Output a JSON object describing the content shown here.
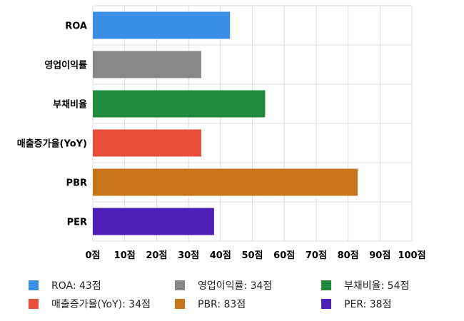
{
  "chart_data": {
    "type": "bar",
    "orientation": "horizontal",
    "categories": [
      "ROA",
      "영업이익률",
      "부채비율",
      "매출증가율(YoY)",
      "PBR",
      "PER"
    ],
    "values": [
      43,
      34,
      54,
      34,
      83,
      38
    ],
    "colors": [
      "#3a8ee6",
      "#888888",
      "#1f8a3a",
      "#e84e3a",
      "#c97418",
      "#4e1fb8"
    ],
    "xlim": [
      0,
      100
    ],
    "xticks": [
      0,
      10,
      20,
      30,
      40,
      50,
      60,
      70,
      80,
      90,
      100
    ],
    "xtick_suffix": "점",
    "grid": true,
    "legend_position": "bottom"
  },
  "legend": [
    {
      "label": "ROA: 43점",
      "color": "#3a8ee6"
    },
    {
      "label": "영업이익률: 34점",
      "color": "#888888"
    },
    {
      "label": "부채비율: 54점",
      "color": "#1f8a3a"
    },
    {
      "label": "매출증가율(YoY): 34점",
      "color": "#e84e3a"
    },
    {
      "label": "PBR: 83점",
      "color": "#c97418"
    },
    {
      "label": "PER: 38점",
      "color": "#4e1fb8"
    }
  ]
}
